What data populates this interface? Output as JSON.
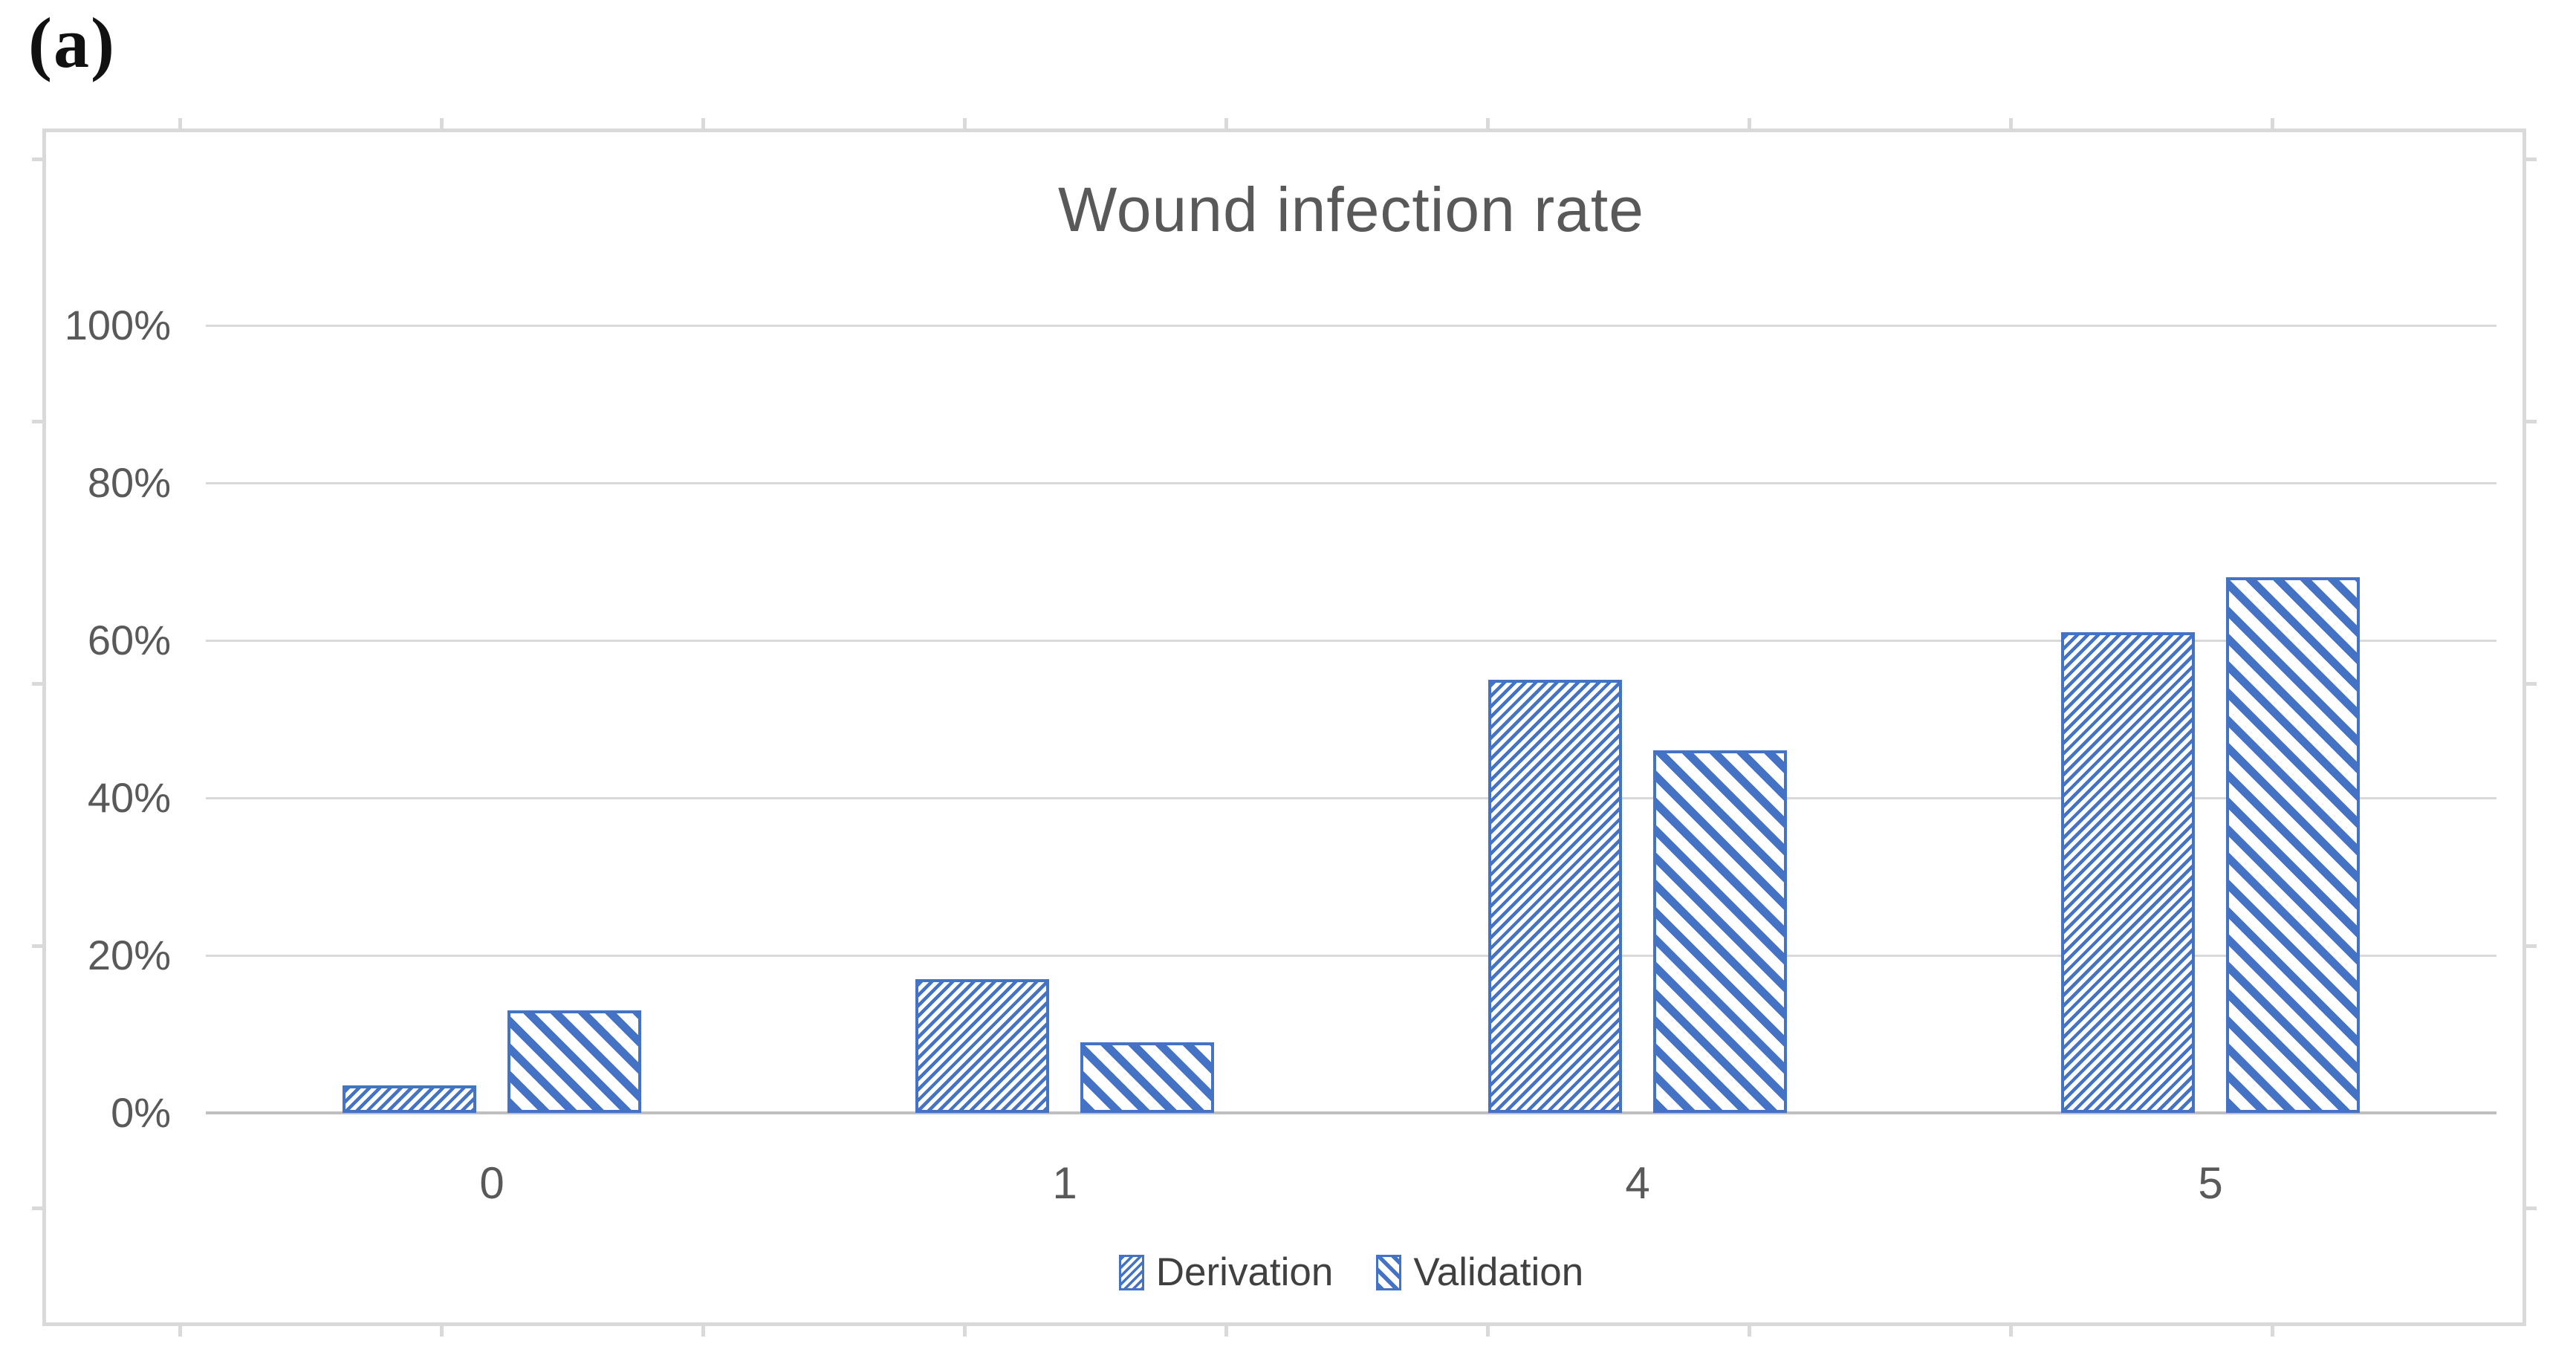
{
  "panel_label": "(a)",
  "chart_data": {
    "type": "bar",
    "title": "Wound infection rate",
    "categories": [
      "0",
      "1",
      "4",
      "5"
    ],
    "series": [
      {
        "name": "Derivation",
        "pattern": "diagonal-up",
        "values": [
          3.5,
          17,
          55,
          61
        ]
      },
      {
        "name": "Validation",
        "pattern": "diagonal-down",
        "values": [
          13,
          9,
          46,
          68
        ]
      }
    ],
    "y_axis": {
      "tick_labels": [
        "0%",
        "20%",
        "40%",
        "60%",
        "80%",
        "100%"
      ],
      "tick_values": [
        0,
        20,
        40,
        60,
        80,
        100
      ],
      "min": 0,
      "max": 100
    },
    "grid": true,
    "legend_position": "bottom",
    "colors": {
      "bar": "#4472C4",
      "gridline": "#D9D9D9",
      "axis_line": "#BFBFBF",
      "text": "#595959",
      "frame": "#D9D9D9"
    }
  }
}
